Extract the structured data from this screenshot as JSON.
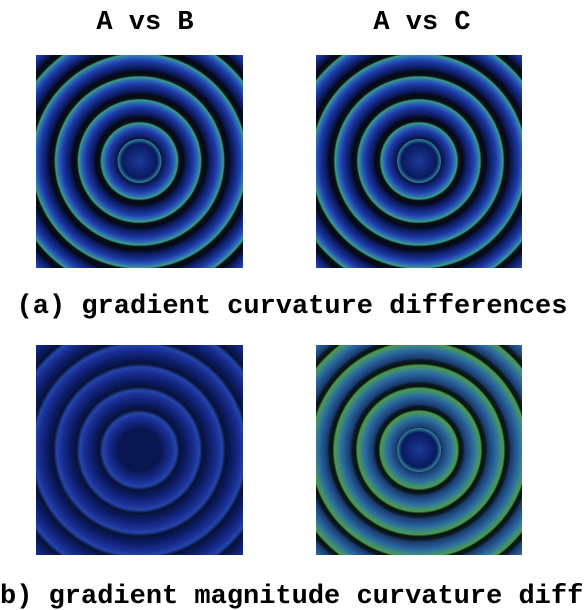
{
  "headers": [
    "A vs B",
    "A vs C"
  ],
  "captions": [
    "(a) gradient curvature differences",
    "b) gradient magnitude curvature diff"
  ]
}
